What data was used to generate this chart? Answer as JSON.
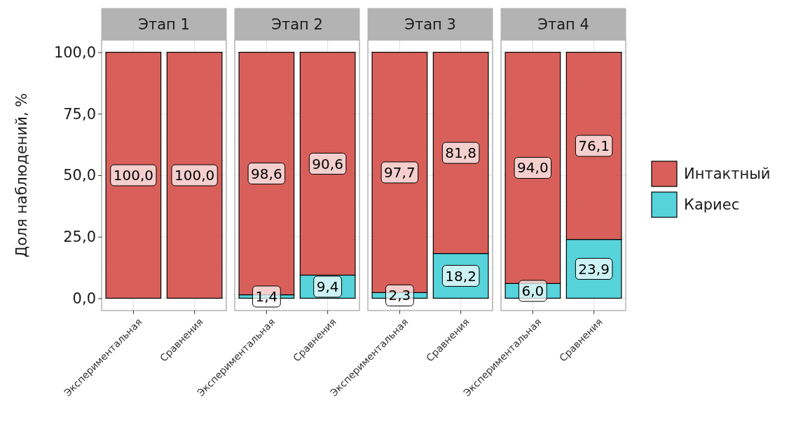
{
  "chart_data": [
    {
      "type": "bar",
      "title": "Этап 1",
      "ylabel": "Доля наблюдений, %",
      "categories": [
        "Экспериментальная",
        "Сравнения"
      ],
      "stacked": true,
      "grid": true,
      "ylim": [
        -5,
        105
      ],
      "yticks": [
        {
          "value": 0,
          "label": "0,0"
        },
        {
          "value": 25,
          "label": "25,0"
        },
        {
          "value": 50,
          "label": "50,0"
        },
        {
          "value": 75,
          "label": "75,0"
        },
        {
          "value": 100,
          "label": "100,0"
        }
      ],
      "series": [
        {
          "color": "#d9605a",
          "values": [
            100,
            100
          ],
          "value_labels": [
            "100,0",
            "100,0"
          ]
        }
      ]
    },
    {
      "type": "bar",
      "title": "Этап 2",
      "categories": [
        "Экспериментальная",
        "Сравнения"
      ],
      "stacked": true,
      "grid": true,
      "tick_labels": "x",
      "ylim": [
        -5,
        105
      ],
      "yticks": [
        0,
        25,
        50,
        75,
        100
      ],
      "series": [
        {
          "color": "#56d3db",
          "values": [
            1.4,
            9.4
          ],
          "value_labels": [
            "1,4",
            "9,4"
          ]
        },
        {
          "color": "#d9605a",
          "values": [
            98.6,
            90.6
          ],
          "value_labels": [
            "98,6",
            "90,6"
          ]
        }
      ]
    },
    {
      "type": "bar",
      "title": "Этап 3",
      "categories": [
        "Экспериментальная",
        "Сравнения"
      ],
      "stacked": true,
      "grid": true,
      "tick_labels": "x",
      "ylim": [
        -5,
        105
      ],
      "yticks": [
        0,
        25,
        50,
        75,
        100
      ],
      "series": [
        {
          "color": "#56d3db",
          "values": [
            2.3,
            18.2
          ],
          "value_labels": [
            "2,3",
            "18,2"
          ]
        },
        {
          "color": "#d9605a",
          "values": [
            97.7,
            81.8
          ],
          "value_labels": [
            "97,7",
            "81,8"
          ]
        }
      ]
    },
    {
      "type": "bar",
      "title": "Этап 4",
      "categories": [
        "Экспериментальная",
        "Сравнения"
      ],
      "stacked": true,
      "grid": true,
      "tick_labels": "x",
      "legend": "right",
      "ylim": [
        -5,
        105
      ],
      "yticks": [
        0,
        25,
        50,
        75,
        100
      ],
      "series": [
        {
          "name": "Кариес",
          "color": "#56d3db",
          "values": [
            6,
            23.9
          ],
          "value_labels": [
            "6,0",
            "23,9"
          ]
        },
        {
          "name": "Интактный",
          "color": "#d9605a",
          "values": [
            94,
            76.1
          ],
          "value_labels": [
            "94,0",
            "76,1"
          ]
        }
      ]
    }
  ]
}
